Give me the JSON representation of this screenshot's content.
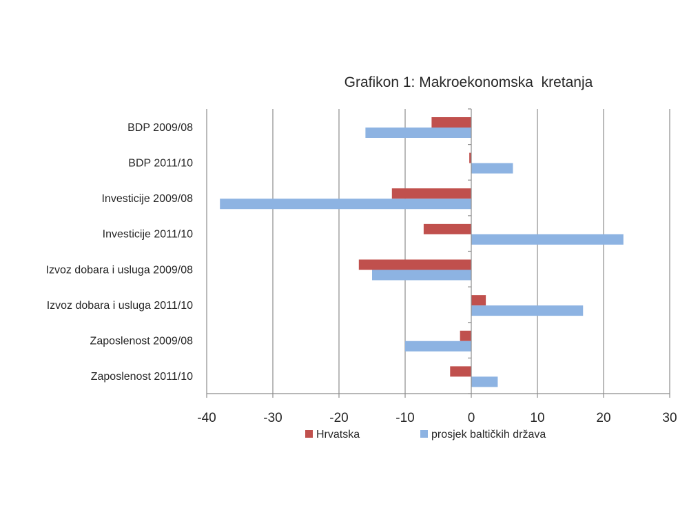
{
  "chart_data": {
    "type": "bar",
    "orientation": "horizontal",
    "title": "Grafikon 1: Makroekonomska  kretanja",
    "categories": [
      "BDP 2009/08",
      "BDP 2011/10",
      "Investicije 2009/08",
      "Investicije 2011/10",
      "Izvoz dobara i usluga 2009/08",
      "Izvoz dobara i usluga 2011/10",
      "Zaposlenost 2009/08",
      "Zaposlenost 2011/10"
    ],
    "series": [
      {
        "name": "Hrvatska",
        "color": "#c0504d",
        "values": [
          -6,
          -0.3,
          -12,
          -7.2,
          -17,
          2.2,
          -1.7,
          -3.2
        ]
      },
      {
        "name": "prosjek baltičkih država",
        "color": "#8db3e2",
        "values": [
          -16,
          6.3,
          -38,
          23,
          -15,
          16.9,
          -10,
          4
        ]
      }
    ],
    "xlim": [
      -40,
      30
    ],
    "xticks": [
      "-40",
      "-30",
      "-20",
      "-10",
      "0",
      "10",
      "20",
      "30"
    ],
    "xlabel": "",
    "ylabel": "",
    "grid": "vertical",
    "legend": "bottom"
  }
}
